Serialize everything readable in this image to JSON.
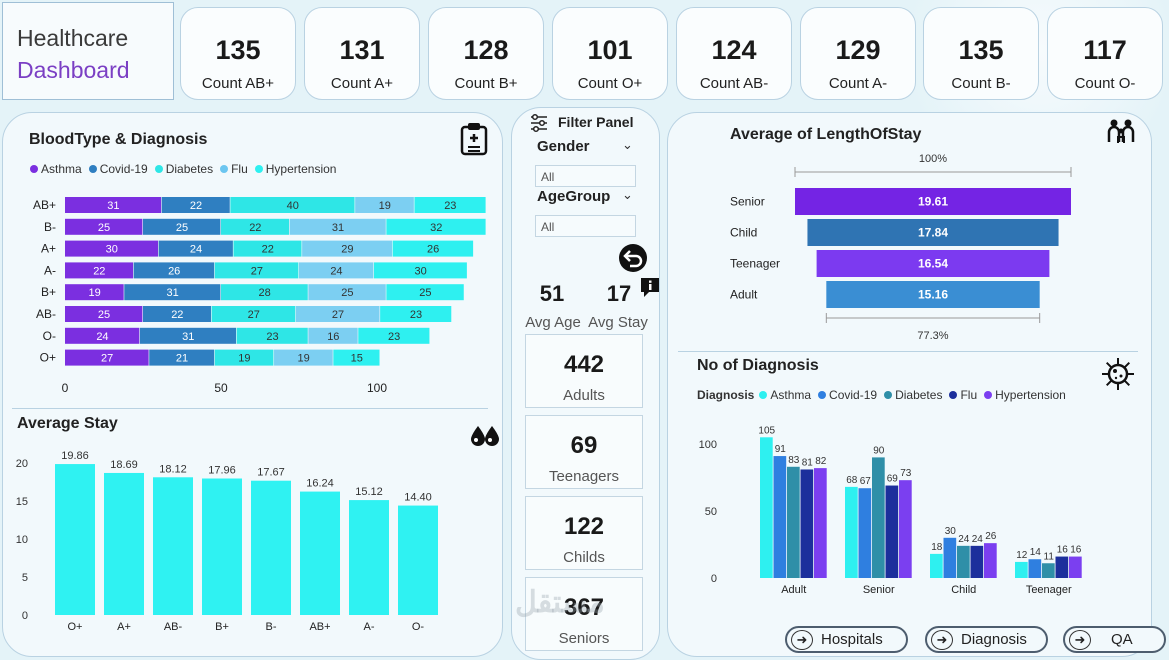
{
  "header": {
    "title_line1": "Healthcare",
    "title_line2": "Dashboard"
  },
  "kpis": [
    {
      "value": "135",
      "label": "Count AB+"
    },
    {
      "value": "131",
      "label": "Count A+"
    },
    {
      "value": "128",
      "label": "Count B+"
    },
    {
      "value": "101",
      "label": "Count O+"
    },
    {
      "value": "124",
      "label": "Count AB-"
    },
    {
      "value": "129",
      "label": "Count A-"
    },
    {
      "value": "135",
      "label": "Count B-"
    },
    {
      "value": "117",
      "label": "Count O-"
    }
  ],
  "colors": {
    "asthma": "#7b2fe0",
    "covid": "#2f7fc1",
    "diabetes": "#2ee6e6",
    "flu": "#6cc6f0",
    "hypertension": "#2ef0f0",
    "accent": "#7b3fc4"
  },
  "blood_diag": {
    "title": "BloodType & Diagnosis",
    "legend": [
      "Asthma",
      "Covid-19",
      "Diabetes",
      "Flu",
      "Hypertension"
    ]
  },
  "avg_stay": {
    "title": "Average Stay"
  },
  "filter": {
    "title": "Filter Panel",
    "gender_label": "Gender",
    "gender_value": "All",
    "age_label": "AgeGroup",
    "age_value": "All",
    "avg_age": "51",
    "avg_age_label": "Avg Age",
    "avg_stay": "17",
    "avg_stay_label": "Avg Stay"
  },
  "age_boxes": [
    {
      "value": "442",
      "label": "Adults"
    },
    {
      "value": "69",
      "label": "Teenagers"
    },
    {
      "value": "122",
      "label": "Childs"
    },
    {
      "value": "367",
      "label": "Seniors"
    }
  ],
  "los": {
    "title": "Average of LengthOfStay"
  },
  "diag_count": {
    "title": "No of Diagnosis",
    "legend_title": "Diagnosis",
    "legend": [
      "Asthma",
      "Covid-19",
      "Diabetes",
      "Flu",
      "Hypertension"
    ]
  },
  "nav": {
    "hospitals": "Hospitals",
    "diagnosis": "Diagnosis",
    "qa": "QA"
  },
  "watermark": "مستقل",
  "chart_data": [
    {
      "type": "bar",
      "orientation": "horizontal-stacked",
      "title": "BloodType & Diagnosis",
      "categories": [
        "AB+",
        "B-",
        "A+",
        "A-",
        "B+",
        "AB-",
        "O-",
        "O+"
      ],
      "series": [
        {
          "name": "Asthma",
          "values": [
            31,
            25,
            30,
            22,
            19,
            25,
            24,
            27
          ]
        },
        {
          "name": "Covid-19",
          "values": [
            22,
            25,
            24,
            26,
            31,
            22,
            31,
            21
          ]
        },
        {
          "name": "Diabetes",
          "values": [
            40,
            22,
            22,
            27,
            28,
            27,
            23,
            19
          ]
        },
        {
          "name": "Flu",
          "values": [
            19,
            31,
            29,
            24,
            25,
            27,
            16,
            19
          ]
        },
        {
          "name": "Hypertension",
          "values": [
            23,
            32,
            26,
            30,
            25,
            23,
            23,
            15
          ]
        }
      ],
      "xticks": [
        "0",
        "50",
        "100"
      ],
      "xlim": [
        0,
        135
      ],
      "legend_position": "top-left"
    },
    {
      "type": "bar",
      "title": "Average Stay",
      "categories": [
        "O+",
        "A+",
        "AB-",
        "B+",
        "B-",
        "AB+",
        "A-",
        "O-"
      ],
      "values": [
        19.86,
        18.69,
        18.12,
        17.96,
        17.67,
        16.24,
        15.12,
        14.4
      ],
      "labels": [
        "19.86",
        "18.69",
        "18.12",
        "17.96",
        "17.67",
        "16.24",
        "15.12",
        "14.40"
      ],
      "yticks": [
        "0",
        "5",
        "10",
        "15",
        "20"
      ],
      "ylim": [
        0,
        21
      ]
    },
    {
      "type": "bar",
      "orientation": "funnel",
      "title": "Average of LengthOfStay",
      "categories": [
        "Senior",
        "Child",
        "Teenager",
        "Adult"
      ],
      "values": [
        19.61,
        17.84,
        16.54,
        15.16
      ],
      "labels": [
        "19.61",
        "17.84",
        "16.54",
        "15.16"
      ],
      "top_label": "100%",
      "bottom_label": "77.3%"
    },
    {
      "type": "bar",
      "title": "No of Diagnosis",
      "categories": [
        "Adult",
        "Senior",
        "Child",
        "Teenager"
      ],
      "series": [
        {
          "name": "Asthma",
          "values": [
            105,
            68,
            18,
            12
          ]
        },
        {
          "name": "Covid-19",
          "values": [
            91,
            67,
            30,
            14
          ]
        },
        {
          "name": "Diabetes",
          "values": [
            83,
            90,
            24,
            11
          ]
        },
        {
          "name": "Flu",
          "values": [
            81,
            69,
            24,
            16
          ]
        },
        {
          "name": "Hypertension",
          "values": [
            82,
            73,
            26,
            16
          ]
        }
      ],
      "yticks": [
        "0",
        "50",
        "100"
      ],
      "ylim": [
        0,
        115
      ],
      "legend_position": "top-left"
    }
  ]
}
